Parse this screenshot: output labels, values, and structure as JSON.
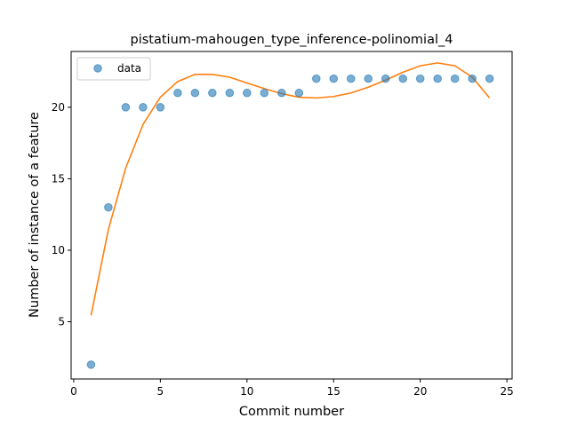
{
  "chart_data": {
    "type": "scatter",
    "title": "pistatium-mahougen_type_inference-polinomial_4",
    "xlabel": "Commit number",
    "ylabel": "Number of instance of a feature",
    "xlim": [
      -0.15,
      25.3
    ],
    "ylim": [
      1.0,
      23.9
    ],
    "xticks": [
      0,
      5,
      10,
      15,
      20,
      25
    ],
    "yticks": [
      5,
      10,
      15,
      20
    ],
    "grid": false,
    "legend_position": "top-left",
    "series": [
      {
        "name": "data",
        "kind": "scatter",
        "color": "#1f77b4",
        "x": [
          1,
          2,
          3,
          4,
          5,
          6,
          7,
          8,
          9,
          10,
          11,
          12,
          13,
          14,
          15,
          16,
          17,
          18,
          19,
          20,
          21,
          22,
          23,
          24
        ],
        "y": [
          2,
          13,
          20,
          20,
          20,
          21,
          21,
          21,
          21,
          21,
          21,
          21,
          21,
          22,
          22,
          22,
          22,
          22,
          22,
          22,
          22,
          22,
          22,
          22
        ]
      },
      {
        "kind": "line",
        "color": "#ff7f0e",
        "x": [
          1,
          2,
          3,
          4,
          5,
          6,
          7,
          8,
          9,
          10,
          11,
          12,
          13,
          14,
          15,
          16,
          17,
          18,
          19,
          20,
          21,
          22,
          23,
          24
        ],
        "y": [
          5.45,
          11.45,
          15.75,
          18.8,
          20.7,
          21.8,
          22.3,
          22.3,
          22.1,
          21.7,
          21.3,
          20.95,
          20.7,
          20.65,
          20.75,
          21.0,
          21.4,
          21.9,
          22.45,
          22.9,
          23.1,
          22.9,
          22.1,
          20.65
        ]
      }
    ]
  }
}
